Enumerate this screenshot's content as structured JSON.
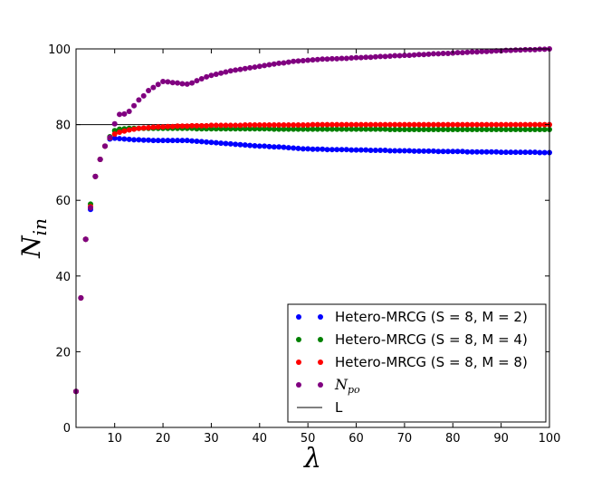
{
  "chart_data": {
    "type": "scatter",
    "xlabel": "λ",
    "ylabel": "N",
    "ylabel_sub": "in",
    "xlim": [
      2,
      100
    ],
    "ylim": [
      0,
      100
    ],
    "xticks": [
      10,
      20,
      30,
      40,
      50,
      60,
      70,
      80,
      90,
      100
    ],
    "yticks": [
      0,
      20,
      40,
      60,
      80,
      100
    ],
    "grid": false,
    "legend_position": "bottom-right",
    "colors": {
      "s8m2": "#0000ff",
      "s8m4": "#008000",
      "s8m8": "#ff0000",
      "npo": "#800080",
      "line": "#000000"
    },
    "reference_line": {
      "name": "L",
      "y": 80
    },
    "series": [
      {
        "name": "Hetero-MRCG (S = 8, M = 2)",
        "key": "s8m2",
        "x": [
          2,
          3,
          4,
          5,
          6,
          7,
          8,
          9,
          10,
          11,
          12,
          13,
          14,
          15,
          16,
          17,
          18,
          19,
          20,
          21,
          22,
          23,
          24,
          25,
          26,
          27,
          28,
          29,
          30,
          31,
          32,
          33,
          34,
          35,
          36,
          37,
          38,
          39,
          40,
          41,
          42,
          43,
          44,
          45,
          46,
          47,
          48,
          49,
          50,
          51,
          52,
          53,
          54,
          55,
          56,
          57,
          58,
          59,
          60,
          61,
          62,
          63,
          64,
          65,
          66,
          67,
          68,
          69,
          70,
          71,
          72,
          73,
          74,
          75,
          76,
          77,
          78,
          79,
          80,
          81,
          82,
          83,
          84,
          85,
          86,
          87,
          88,
          89,
          90,
          91,
          92,
          93,
          94,
          95,
          96,
          97,
          98,
          99,
          100
        ],
        "y": [
          9.5,
          34.2,
          49.7,
          57.6,
          66.3,
          70.8,
          74.3,
          76.2,
          76.4,
          76.3,
          76.2,
          76.1,
          76.0,
          76.0,
          75.9,
          75.9,
          75.8,
          75.8,
          75.8,
          75.8,
          75.8,
          75.8,
          75.8,
          75.8,
          75.7,
          75.6,
          75.5,
          75.4,
          75.3,
          75.2,
          75.1,
          75.0,
          74.9,
          74.8,
          74.7,
          74.6,
          74.5,
          74.4,
          74.3,
          74.3,
          74.2,
          74.1,
          74.1,
          74.0,
          73.9,
          73.8,
          73.7,
          73.6,
          73.6,
          73.5,
          73.5,
          73.5,
          73.4,
          73.4,
          73.4,
          73.4,
          73.4,
          73.3,
          73.3,
          73.3,
          73.3,
          73.2,
          73.2,
          73.2,
          73.2,
          73.1,
          73.1,
          73.1,
          73.1,
          73.1,
          73.0,
          73.0,
          73.0,
          73.0,
          73.0,
          72.9,
          72.9,
          72.9,
          72.9,
          72.9,
          72.9,
          72.8,
          72.8,
          72.8,
          72.8,
          72.8,
          72.8,
          72.8,
          72.7,
          72.7,
          72.7,
          72.7,
          72.7,
          72.7,
          72.7,
          72.7,
          72.6,
          72.6,
          72.6
        ]
      },
      {
        "name": "Hetero-MRCG (S = 8, M = 4)",
        "key": "s8m4",
        "x": [
          2,
          3,
          4,
          5,
          6,
          7,
          8,
          9,
          10,
          11,
          12,
          13,
          14,
          15,
          16,
          17,
          18,
          19,
          20,
          21,
          22,
          23,
          24,
          25,
          26,
          27,
          28,
          29,
          30,
          31,
          32,
          33,
          34,
          35,
          36,
          37,
          38,
          39,
          40,
          41,
          42,
          43,
          44,
          45,
          46,
          47,
          48,
          49,
          50,
          51,
          52,
          53,
          54,
          55,
          56,
          57,
          58,
          59,
          60,
          61,
          62,
          63,
          64,
          65,
          66,
          67,
          68,
          69,
          70,
          71,
          72,
          73,
          74,
          75,
          76,
          77,
          78,
          79,
          80,
          81,
          82,
          83,
          84,
          85,
          86,
          87,
          88,
          89,
          90,
          91,
          92,
          93,
          94,
          95,
          96,
          97,
          98,
          99,
          100
        ],
        "y": [
          9.5,
          34.2,
          49.7,
          59.0,
          66.3,
          70.8,
          74.3,
          76.8,
          78.4,
          78.8,
          78.9,
          79.0,
          79.0,
          79.0,
          79.0,
          79.0,
          79.0,
          79.0,
          79.0,
          79.0,
          79.0,
          79.0,
          79.0,
          79.0,
          79.0,
          78.9,
          78.9,
          78.9,
          78.9,
          78.9,
          78.9,
          78.9,
          78.9,
          78.9,
          78.9,
          78.9,
          78.9,
          78.9,
          78.9,
          78.9,
          78.9,
          78.8,
          78.8,
          78.8,
          78.8,
          78.8,
          78.8,
          78.8,
          78.8,
          78.8,
          78.8,
          78.8,
          78.8,
          78.8,
          78.8,
          78.8,
          78.8,
          78.8,
          78.8,
          78.8,
          78.8,
          78.8,
          78.8,
          78.8,
          78.8,
          78.7,
          78.7,
          78.7,
          78.7,
          78.7,
          78.7,
          78.7,
          78.7,
          78.7,
          78.7,
          78.7,
          78.7,
          78.7,
          78.7,
          78.7,
          78.7,
          78.7,
          78.7,
          78.7,
          78.7,
          78.7,
          78.7,
          78.7,
          78.7,
          78.7,
          78.7,
          78.7,
          78.7,
          78.7,
          78.7,
          78.7,
          78.7,
          78.7,
          78.7
        ]
      },
      {
        "name": "Hetero-MRCG (S = 8, M = 8)",
        "key": "s8m8",
        "x": [
          2,
          3,
          4,
          5,
          6,
          7,
          8,
          9,
          10,
          11,
          12,
          13,
          14,
          15,
          16,
          17,
          18,
          19,
          20,
          21,
          22,
          23,
          24,
          25,
          26,
          27,
          28,
          29,
          30,
          31,
          32,
          33,
          34,
          35,
          36,
          37,
          38,
          39,
          40,
          41,
          42,
          43,
          44,
          45,
          46,
          47,
          48,
          49,
          50,
          51,
          52,
          53,
          54,
          55,
          56,
          57,
          58,
          59,
          60,
          61,
          62,
          63,
          64,
          65,
          66,
          67,
          68,
          69,
          70,
          71,
          72,
          73,
          74,
          75,
          76,
          77,
          78,
          79,
          80,
          81,
          82,
          83,
          84,
          85,
          86,
          87,
          88,
          89,
          90,
          91,
          92,
          93,
          94,
          95,
          96,
          97,
          98,
          99,
          100
        ],
        "y": [
          9.5,
          34.2,
          49.7,
          58.3,
          66.3,
          70.8,
          74.3,
          76.5,
          77.5,
          78.0,
          78.3,
          78.6,
          78.8,
          79.0,
          79.1,
          79.2,
          79.3,
          79.4,
          79.4,
          79.5,
          79.5,
          79.6,
          79.6,
          79.6,
          79.7,
          79.7,
          79.7,
          79.7,
          79.8,
          79.8,
          79.8,
          79.8,
          79.8,
          79.8,
          79.8,
          79.9,
          79.9,
          79.9,
          79.9,
          79.9,
          79.9,
          79.9,
          79.9,
          79.9,
          79.9,
          79.9,
          79.9,
          79.9,
          79.9,
          80.0,
          80.0,
          80.0,
          80.0,
          80.0,
          80.0,
          80.0,
          80.0,
          80.0,
          80.0,
          80.0,
          80.0,
          80.0,
          80.0,
          80.0,
          80.0,
          80.0,
          80.0,
          80.0,
          80.0,
          80.0,
          80.0,
          80.0,
          80.0,
          80.0,
          80.0,
          80.0,
          80.0,
          80.0,
          80.0,
          80.0,
          80.0,
          80.0,
          80.0,
          80.0,
          80.0,
          80.0,
          80.0,
          80.0,
          80.0,
          80.0,
          80.0,
          80.0,
          80.0,
          80.0,
          80.0,
          80.0,
          80.0,
          80.0,
          80.0
        ]
      },
      {
        "name": "N",
        "name_sub": "po",
        "key": "npo",
        "x": [
          2,
          3,
          4,
          5,
          6,
          7,
          8,
          9,
          10,
          11,
          12,
          13,
          14,
          15,
          16,
          17,
          18,
          19,
          20,
          21,
          22,
          23,
          24,
          25,
          26,
          27,
          28,
          29,
          30,
          31,
          32,
          33,
          34,
          35,
          36,
          37,
          38,
          39,
          40,
          41,
          42,
          43,
          44,
          45,
          46,
          47,
          48,
          49,
          50,
          51,
          52,
          53,
          54,
          55,
          56,
          57,
          58,
          59,
          60,
          61,
          62,
          63,
          64,
          65,
          66,
          67,
          68,
          69,
          70,
          71,
          72,
          73,
          74,
          75,
          76,
          77,
          78,
          79,
          80,
          81,
          82,
          83,
          84,
          85,
          86,
          87,
          88,
          89,
          90,
          91,
          92,
          93,
          94,
          95,
          96,
          97,
          98,
          99,
          100
        ],
        "y": [
          9.5,
          34.2,
          49.7,
          58.0,
          66.3,
          70.8,
          74.3,
          76.6,
          80.2,
          82.7,
          82.8,
          83.5,
          85.0,
          86.5,
          87.6,
          89.0,
          89.8,
          90.6,
          91.4,
          91.3,
          91.1,
          91.0,
          90.8,
          90.7,
          91.0,
          91.6,
          92.1,
          92.6,
          93.0,
          93.3,
          93.6,
          93.9,
          94.2,
          94.4,
          94.6,
          94.8,
          95.0,
          95.2,
          95.4,
          95.6,
          95.8,
          96.0,
          96.2,
          96.3,
          96.5,
          96.7,
          96.8,
          96.9,
          97.0,
          97.1,
          97.2,
          97.3,
          97.3,
          97.4,
          97.4,
          97.5,
          97.5,
          97.6,
          97.7,
          97.7,
          97.8,
          97.8,
          97.9,
          98.0,
          98.0,
          98.1,
          98.2,
          98.2,
          98.3,
          98.3,
          98.4,
          98.5,
          98.5,
          98.6,
          98.7,
          98.7,
          98.8,
          98.8,
          98.9,
          99.0,
          99.0,
          99.1,
          99.2,
          99.2,
          99.3,
          99.3,
          99.4,
          99.5,
          99.5,
          99.6,
          99.6,
          99.7,
          99.7,
          99.8,
          99.8,
          99.8,
          99.9,
          99.9,
          100.0
        ]
      }
    ]
  }
}
